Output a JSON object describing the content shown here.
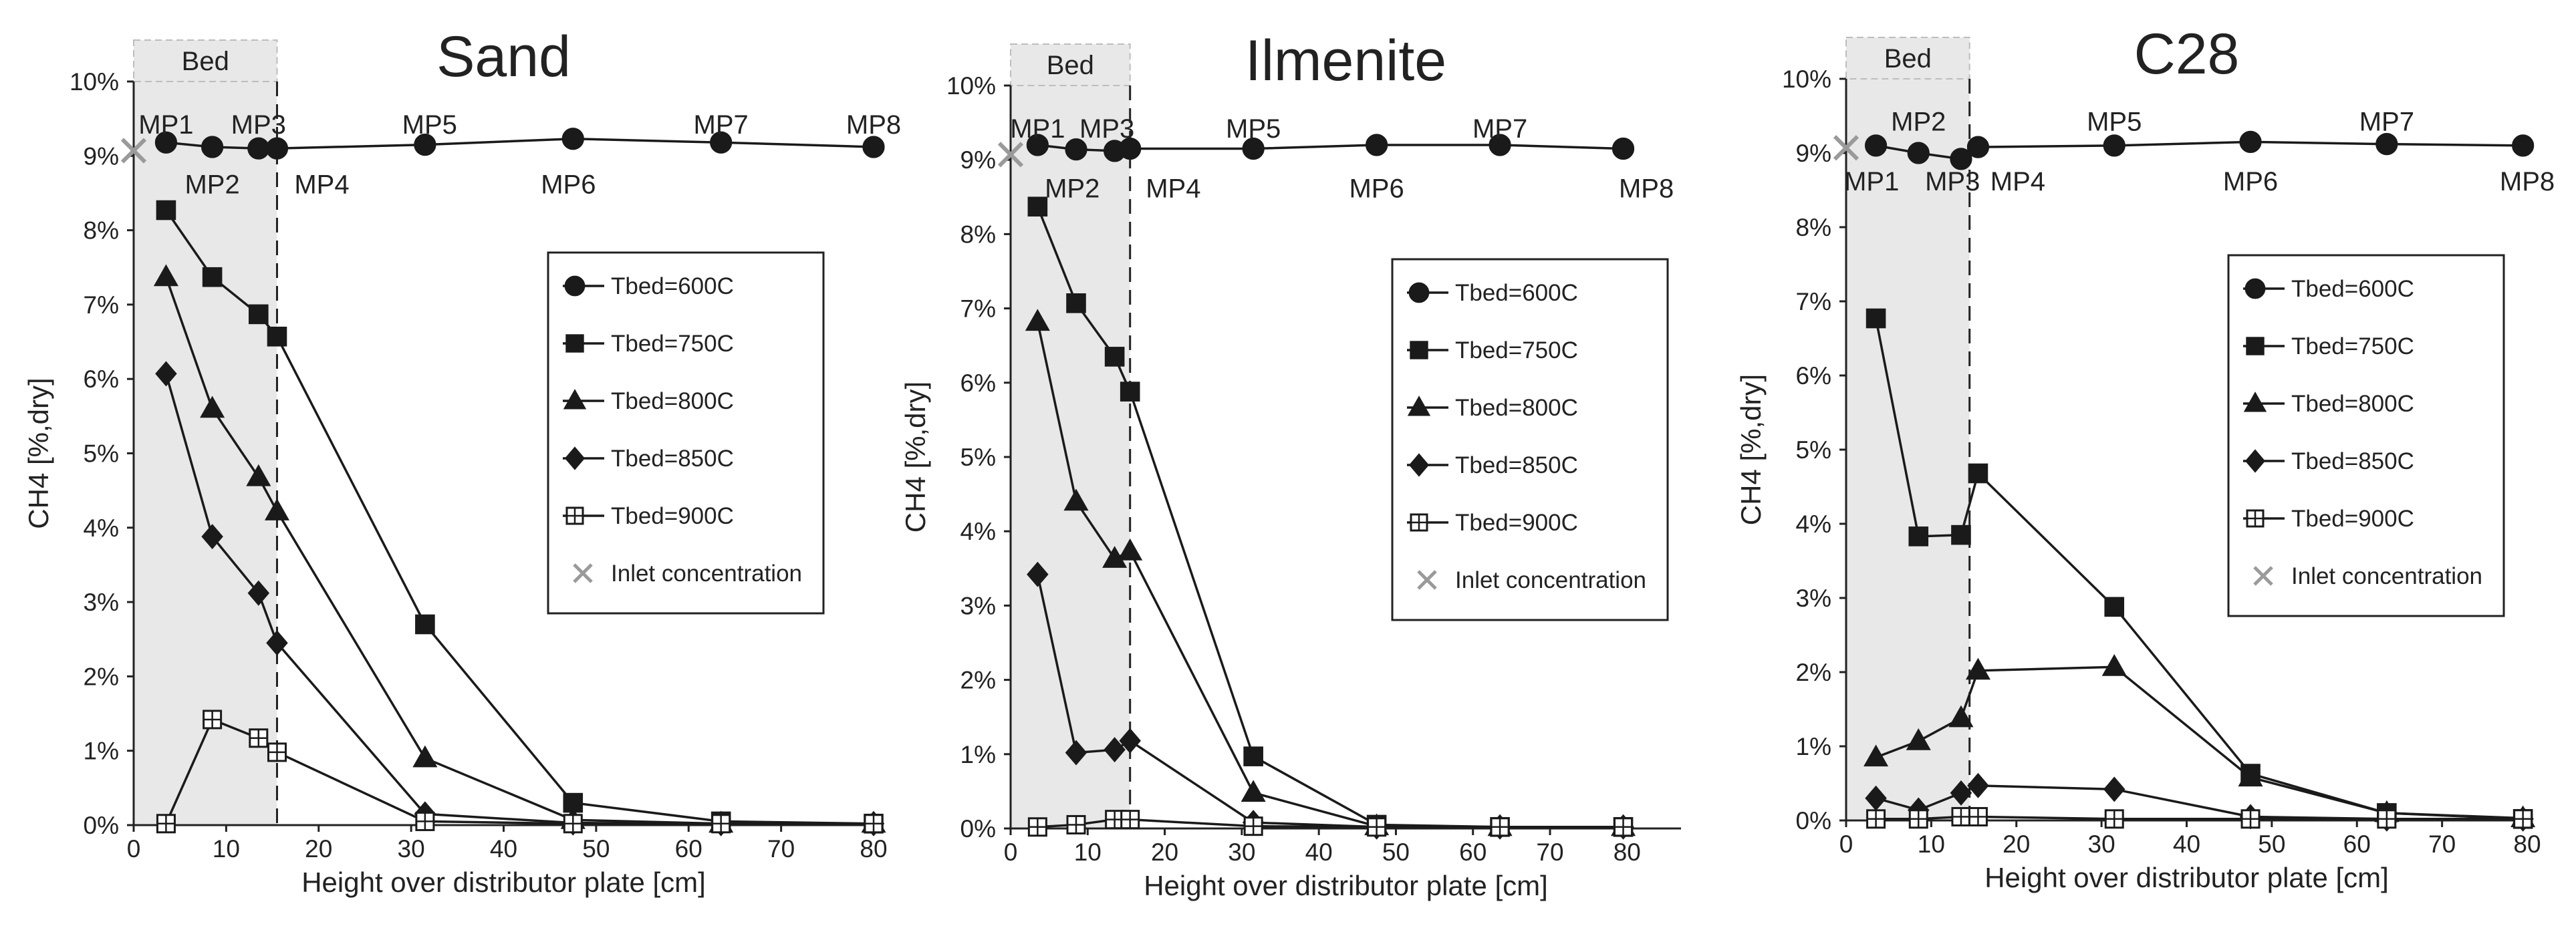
{
  "chart_data": [
    {
      "type": "line",
      "title": "Sand",
      "xlabel": "Height over distributor plate [cm]",
      "ylabel": "CH4 [%,dry]",
      "xlim": [
        0,
        80
      ],
      "ylim": [
        0,
        10
      ],
      "xticks": [
        0,
        10,
        20,
        30,
        40,
        50,
        60,
        70,
        80
      ],
      "yticks": [
        "0%",
        "1%",
        "2%",
        "3%",
        "4%",
        "5%",
        "6%",
        "7%",
        "8%",
        "9%",
        "10%"
      ],
      "bed": {
        "label": "Bed",
        "height_cm": 15.5
      },
      "inlet": {
        "x": 0,
        "y": 9.07
      },
      "mp_labels": [
        {
          "text": "MP1",
          "x": 3.5,
          "y": 9.3,
          "pos": "above"
        },
        {
          "text": "MP3",
          "x": 13.5,
          "y": 9.3,
          "pos": "above"
        },
        {
          "text": "MP2",
          "x": 8.5,
          "y": 8.9,
          "pos": "below"
        },
        {
          "text": "MP4",
          "x": 16.5,
          "y": 8.9,
          "pos": "below-right"
        },
        {
          "text": "MP5",
          "x": 32,
          "y": 9.3,
          "pos": "above"
        },
        {
          "text": "MP6",
          "x": 47,
          "y": 8.9,
          "pos": "below"
        },
        {
          "text": "MP7",
          "x": 63.5,
          "y": 9.3,
          "pos": "above"
        },
        {
          "text": "MP8",
          "x": 80,
          "y": 9.3,
          "pos": "above"
        }
      ],
      "legend": {
        "placement": "center-right",
        "entries": [
          "Tbed=600C",
          "Tbed=750C",
          "Tbed=800C",
          "Tbed=850C",
          "Tbed=900C",
          "Inlet concentration"
        ]
      },
      "series": [
        {
          "name": "Tbed=600C",
          "marker": "circle",
          "x": [
            3.5,
            8.5,
            13.5,
            15.5,
            31.5,
            47.5,
            63.5,
            80
          ],
          "values": [
            9.18,
            9.12,
            9.1,
            9.1,
            9.15,
            9.23,
            9.18,
            9.12
          ]
        },
        {
          "name": "Tbed=750C",
          "marker": "square",
          "x": [
            3.5,
            8.5,
            13.5,
            15.5,
            31.5,
            47.5,
            63.5,
            80
          ],
          "values": [
            8.27,
            7.37,
            6.87,
            6.57,
            2.7,
            0.3,
            0.05,
            0.02
          ]
        },
        {
          "name": "Tbed=800C",
          "marker": "triangle",
          "x": [
            3.5,
            8.5,
            13.5,
            15.5,
            31.5,
            47.5,
            63.5,
            80
          ],
          "values": [
            7.37,
            5.6,
            4.68,
            4.22,
            0.9,
            0.07,
            0.02,
            0.02
          ]
        },
        {
          "name": "Tbed=850C",
          "marker": "diamond",
          "x": [
            3.5,
            8.5,
            13.5,
            15.5,
            31.5,
            47.5,
            63.5,
            80
          ],
          "values": [
            6.07,
            3.88,
            3.12,
            2.45,
            0.15,
            0.03,
            0.02,
            0.02
          ]
        },
        {
          "name": "Tbed=900C",
          "marker": "cross-square",
          "x": [
            3.5,
            8.5,
            13.5,
            15.5,
            31.5,
            47.5,
            63.5,
            80
          ],
          "values": [
            0.02,
            1.42,
            1.17,
            0.98,
            0.05,
            0.02,
            0.02,
            0.02
          ]
        }
      ]
    },
    {
      "type": "line",
      "title": "Ilmenite",
      "xlabel": "Height over distributor plate [cm]",
      "ylabel": "CH4 [%,dry]",
      "xlim": [
        0,
        87
      ],
      "ylim": [
        0,
        10
      ],
      "xticks": [
        0,
        10,
        20,
        30,
        40,
        50,
        60,
        70,
        80
      ],
      "yticks": [
        "0%",
        "1%",
        "2%",
        "3%",
        "4%",
        "5%",
        "6%",
        "7%",
        "8%",
        "9%",
        "10%"
      ],
      "bed": {
        "label": "Bed",
        "height_cm": 15.5
      },
      "inlet": {
        "x": 0,
        "y": 9.07
      },
      "mp_labels": [
        {
          "text": "MP1",
          "x": 3.5,
          "y": 9.3,
          "pos": "above"
        },
        {
          "text": "MP3",
          "x": 12.5,
          "y": 9.3,
          "pos": "above"
        },
        {
          "text": "MP2",
          "x": 8,
          "y": 8.9,
          "pos": "below"
        },
        {
          "text": "MP4",
          "x": 16.5,
          "y": 8.9,
          "pos": "below-right"
        },
        {
          "text": "MP5",
          "x": 31.5,
          "y": 9.3,
          "pos": "above"
        },
        {
          "text": "MP6",
          "x": 47.5,
          "y": 8.9,
          "pos": "below"
        },
        {
          "text": "MP7",
          "x": 63.5,
          "y": 9.3,
          "pos": "above"
        },
        {
          "text": "MP8",
          "x": 82.5,
          "y": 8.9,
          "pos": "below"
        }
      ],
      "legend": {
        "placement": "center-right",
        "entries": [
          "Tbed=600C",
          "Tbed=750C",
          "Tbed=800C",
          "Tbed=850C",
          "Tbed=900C",
          "Inlet concentration"
        ]
      },
      "series": [
        {
          "name": "Tbed=600C",
          "marker": "circle",
          "x": [
            3.5,
            8.5,
            13.5,
            15.5,
            31.5,
            47.5,
            63.5,
            79.5
          ],
          "values": [
            9.2,
            9.14,
            9.12,
            9.15,
            9.15,
            9.2,
            9.2,
            9.15
          ]
        },
        {
          "name": "Tbed=750C",
          "marker": "square",
          "x": [
            3.5,
            8.5,
            13.5,
            15.5,
            31.5,
            47.5,
            63.5,
            79.5
          ],
          "values": [
            8.37,
            7.07,
            6.35,
            5.88,
            0.97,
            0.05,
            0.02,
            0.02
          ]
        },
        {
          "name": "Tbed=800C",
          "marker": "triangle",
          "x": [
            3.5,
            8.5,
            13.5,
            15.5,
            31.5,
            47.5,
            63.5,
            79.5
          ],
          "values": [
            6.82,
            4.4,
            3.63,
            3.73,
            0.48,
            0.03,
            0.02,
            0.02
          ]
        },
        {
          "name": "Tbed=850C",
          "marker": "diamond",
          "x": [
            3.5,
            8.5,
            13.5,
            15.5,
            31.5,
            47.5,
            63.5,
            79.5
          ],
          "values": [
            3.42,
            1.02,
            1.06,
            1.18,
            0.08,
            0.02,
            0.02,
            0.02
          ]
        },
        {
          "name": "Tbed=900C",
          "marker": "cross-square",
          "x": [
            3.5,
            8.5,
            13.5,
            15.5,
            31.5,
            47.5,
            63.5,
            79.5
          ],
          "values": [
            0.02,
            0.05,
            0.12,
            0.12,
            0.03,
            0.02,
            0.02,
            0.02
          ]
        }
      ]
    },
    {
      "type": "line",
      "title": "C28",
      "xlabel": "Height over distributor plate [cm]",
      "ylabel": "CH4 [%,dry]",
      "xlim": [
        0,
        80
      ],
      "ylim": [
        0,
        10
      ],
      "xticks": [
        0,
        10,
        20,
        30,
        40,
        50,
        60,
        70,
        80
      ],
      "yticks": [
        "0%",
        "1%",
        "2%",
        "3%",
        "4%",
        "5%",
        "6%",
        "7%",
        "8%",
        "9%",
        "10%"
      ],
      "bed": {
        "label": "Bed",
        "height_cm": 14.5
      },
      "inlet": {
        "x": 0,
        "y": 9.07
      },
      "mp_labels": [
        {
          "text": "MP2",
          "x": 8.5,
          "y": 9.3,
          "pos": "above"
        },
        {
          "text": "MP1",
          "x": 3,
          "y": 8.9,
          "pos": "below"
        },
        {
          "text": "MP3",
          "x": 12.5,
          "y": 8.9,
          "pos": "below"
        },
        {
          "text": "MP4",
          "x": 16,
          "y": 8.9,
          "pos": "below-right"
        },
        {
          "text": "MP5",
          "x": 31.5,
          "y": 9.3,
          "pos": "above"
        },
        {
          "text": "MP6",
          "x": 47.5,
          "y": 8.9,
          "pos": "below"
        },
        {
          "text": "MP7",
          "x": 63.5,
          "y": 9.3,
          "pos": "above"
        },
        {
          "text": "MP8",
          "x": 80,
          "y": 8.9,
          "pos": "below"
        }
      ],
      "legend": {
        "placement": "center-right",
        "entries": [
          "Tbed=600C",
          "Tbed=750C",
          "Tbed=800C",
          "Tbed=850C",
          "Tbed=900C",
          "Inlet concentration"
        ]
      },
      "series": [
        {
          "name": "Tbed=600C",
          "marker": "circle",
          "x": [
            3.5,
            8.5,
            13.5,
            15.5,
            31.5,
            47.5,
            63.5,
            79.5
          ],
          "values": [
            9.1,
            9.0,
            8.92,
            9.08,
            9.1,
            9.15,
            9.12,
            9.1
          ]
        },
        {
          "name": "Tbed=750C",
          "marker": "square",
          "x": [
            3.5,
            8.5,
            13.5,
            15.5,
            31.5,
            47.5,
            63.5,
            79.5
          ],
          "values": [
            6.77,
            3.83,
            3.85,
            4.68,
            2.88,
            0.63,
            0.1,
            0.02
          ]
        },
        {
          "name": "Tbed=800C",
          "marker": "triangle",
          "x": [
            3.5,
            8.5,
            13.5,
            15.5,
            31.5,
            47.5,
            63.5,
            79.5
          ],
          "values": [
            0.85,
            1.07,
            1.38,
            2.02,
            2.07,
            0.58,
            0.1,
            0.03
          ]
        },
        {
          "name": "Tbed=850C",
          "marker": "diamond",
          "x": [
            3.5,
            8.5,
            13.5,
            15.5,
            31.5,
            47.5,
            63.5,
            79.5
          ],
          "values": [
            0.3,
            0.14,
            0.37,
            0.47,
            0.42,
            0.05,
            0.02,
            0.02
          ]
        },
        {
          "name": "Tbed=900C",
          "marker": "cross-square",
          "x": [
            3.5,
            8.5,
            13.5,
            15.5,
            31.5,
            47.5,
            63.5,
            79.5
          ],
          "values": [
            0.02,
            0.02,
            0.05,
            0.05,
            0.02,
            0.02,
            0.02,
            0.02
          ]
        }
      ]
    }
  ]
}
